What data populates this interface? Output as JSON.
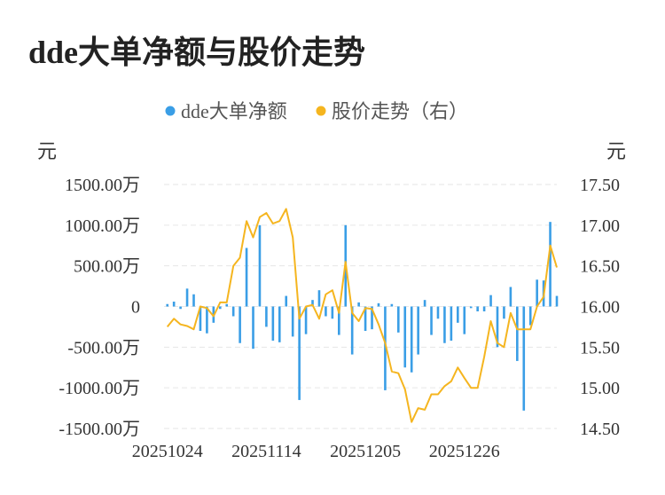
{
  "title": "dde大单净额与股价走势",
  "legend": [
    {
      "name": "dde大单净额",
      "color": "#3a9ee6"
    },
    {
      "name": "股价走势（右）",
      "color": "#f5b51f"
    }
  ],
  "unit_left": "元",
  "unit_right": "元",
  "chart_data": {
    "type": "bar+line",
    "x_tick_labels": [
      "20251024",
      "20251114",
      "20251205",
      "20251226"
    ],
    "x_tick_indices": [
      0,
      15,
      30,
      45
    ],
    "left_axis": {
      "ticks": [
        1500,
        1000,
        500,
        0,
        -500,
        -1000,
        -1500
      ],
      "tick_labels": [
        "1500.00万",
        "1000.00万",
        "500.00万",
        "0",
        "-500.00万",
        "-1000.00万",
        "-1500.00万"
      ],
      "range": [
        -1500,
        1500
      ],
      "unit": "万"
    },
    "right_axis": {
      "ticks": [
        17.5,
        17.0,
        16.5,
        16.0,
        15.5,
        15.0,
        14.5
      ],
      "tick_labels": [
        "17.50",
        "17.00",
        "16.50",
        "16.00",
        "15.50",
        "15.00",
        "14.50"
      ],
      "range": [
        14.5,
        17.5
      ]
    },
    "grid": true,
    "legend_position": "top-center",
    "series": [
      {
        "name": "dde大单净额",
        "kind": "bar",
        "axis": "left",
        "values": [
          30,
          60,
          -30,
          220,
          150,
          -300,
          -330,
          -200,
          -30,
          30,
          -120,
          -450,
          720,
          -520,
          1000,
          -250,
          -420,
          -440,
          130,
          -370,
          -1150,
          -340,
          80,
          200,
          -120,
          -150,
          -350,
          1000,
          -590,
          50,
          -300,
          -280,
          40,
          -1030,
          30,
          -320,
          -750,
          -810,
          -590,
          80,
          -350,
          -150,
          -450,
          -420,
          -200,
          -340,
          -20,
          -60,
          -60,
          140,
          -500,
          -150,
          240,
          -670,
          -1280,
          -230,
          330,
          320,
          1040,
          130
        ]
      },
      {
        "name": "股价走势（右）",
        "kind": "line",
        "axis": "right",
        "values": [
          15.75,
          15.85,
          15.78,
          15.76,
          15.72,
          16.0,
          15.98,
          15.88,
          16.05,
          16.05,
          16.5,
          16.6,
          17.05,
          16.85,
          17.1,
          17.15,
          17.02,
          17.05,
          17.2,
          16.85,
          15.85,
          16.0,
          16.02,
          15.85,
          16.15,
          16.2,
          15.92,
          16.55,
          15.92,
          15.82,
          15.98,
          15.97,
          15.78,
          15.55,
          15.2,
          15.18,
          14.98,
          14.58,
          14.75,
          14.73,
          14.92,
          14.92,
          15.02,
          15.08,
          15.25,
          15.12,
          15.0,
          15.0,
          15.38,
          15.82,
          15.55,
          15.5,
          15.92,
          15.72,
          15.72,
          15.72,
          16.0,
          16.12,
          16.75,
          16.48
        ]
      }
    ]
  }
}
